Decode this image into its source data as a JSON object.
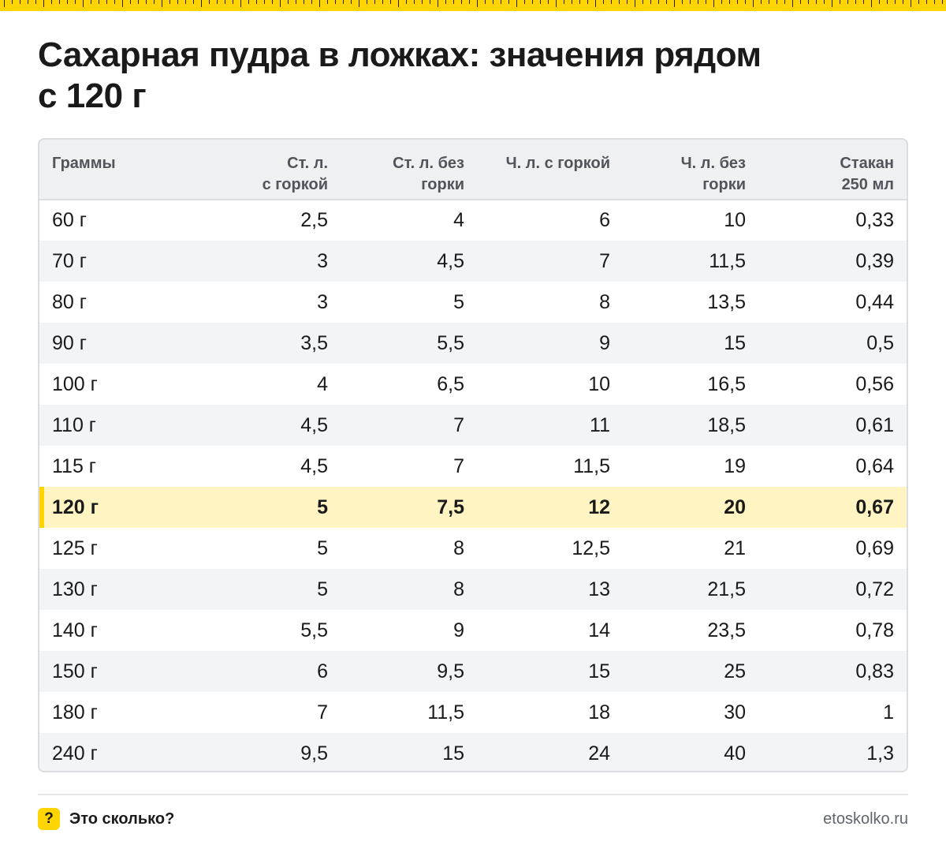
{
  "title_line1": "Сахарная пудра в ложках: значения рядом",
  "title_line2": "с 120 г",
  "table": {
    "headers": [
      [
        "Граммы",
        ""
      ],
      [
        "Ст. л.",
        "с горкой"
      ],
      [
        "Ст. л. без",
        "горки"
      ],
      [
        "Ч. л. с горкой",
        ""
      ],
      [
        "Ч. л. без",
        "горки"
      ],
      [
        "Стакан",
        "250 мл"
      ]
    ],
    "rows": [
      [
        "60 г",
        "2,5",
        "4",
        "6",
        "10",
        "0,33"
      ],
      [
        "70 г",
        "3",
        "4,5",
        "7",
        "11,5",
        "0,39"
      ],
      [
        "80 г",
        "3",
        "5",
        "8",
        "13,5",
        "0,44"
      ],
      [
        "90 г",
        "3,5",
        "5,5",
        "9",
        "15",
        "0,5"
      ],
      [
        "100 г",
        "4",
        "6,5",
        "10",
        "16,5",
        "0,56"
      ],
      [
        "110 г",
        "4,5",
        "7",
        "11",
        "18,5",
        "0,61"
      ],
      [
        "115 г",
        "4,5",
        "7",
        "11,5",
        "19",
        "0,64"
      ],
      [
        "120 г",
        "5",
        "7,5",
        "12",
        "20",
        "0,67"
      ],
      [
        "125 г",
        "5",
        "8",
        "12,5",
        "21",
        "0,69"
      ],
      [
        "130 г",
        "5",
        "8",
        "13",
        "21,5",
        "0,72"
      ],
      [
        "140 г",
        "5,5",
        "9",
        "14",
        "23,5",
        "0,78"
      ],
      [
        "150 г",
        "6",
        "9,5",
        "15",
        "25",
        "0,83"
      ],
      [
        "180 г",
        "7",
        "11,5",
        "18",
        "30",
        "1"
      ],
      [
        "240 г",
        "9,5",
        "15",
        "24",
        "40",
        "1,3"
      ]
    ],
    "highlight_row": 7,
    "highlight_color": "#fff4c2",
    "accent_color": "#ffd400"
  },
  "footer": {
    "icon_glyph": "?",
    "brand": "Это сколько?",
    "site": "etoskolko.ru"
  }
}
